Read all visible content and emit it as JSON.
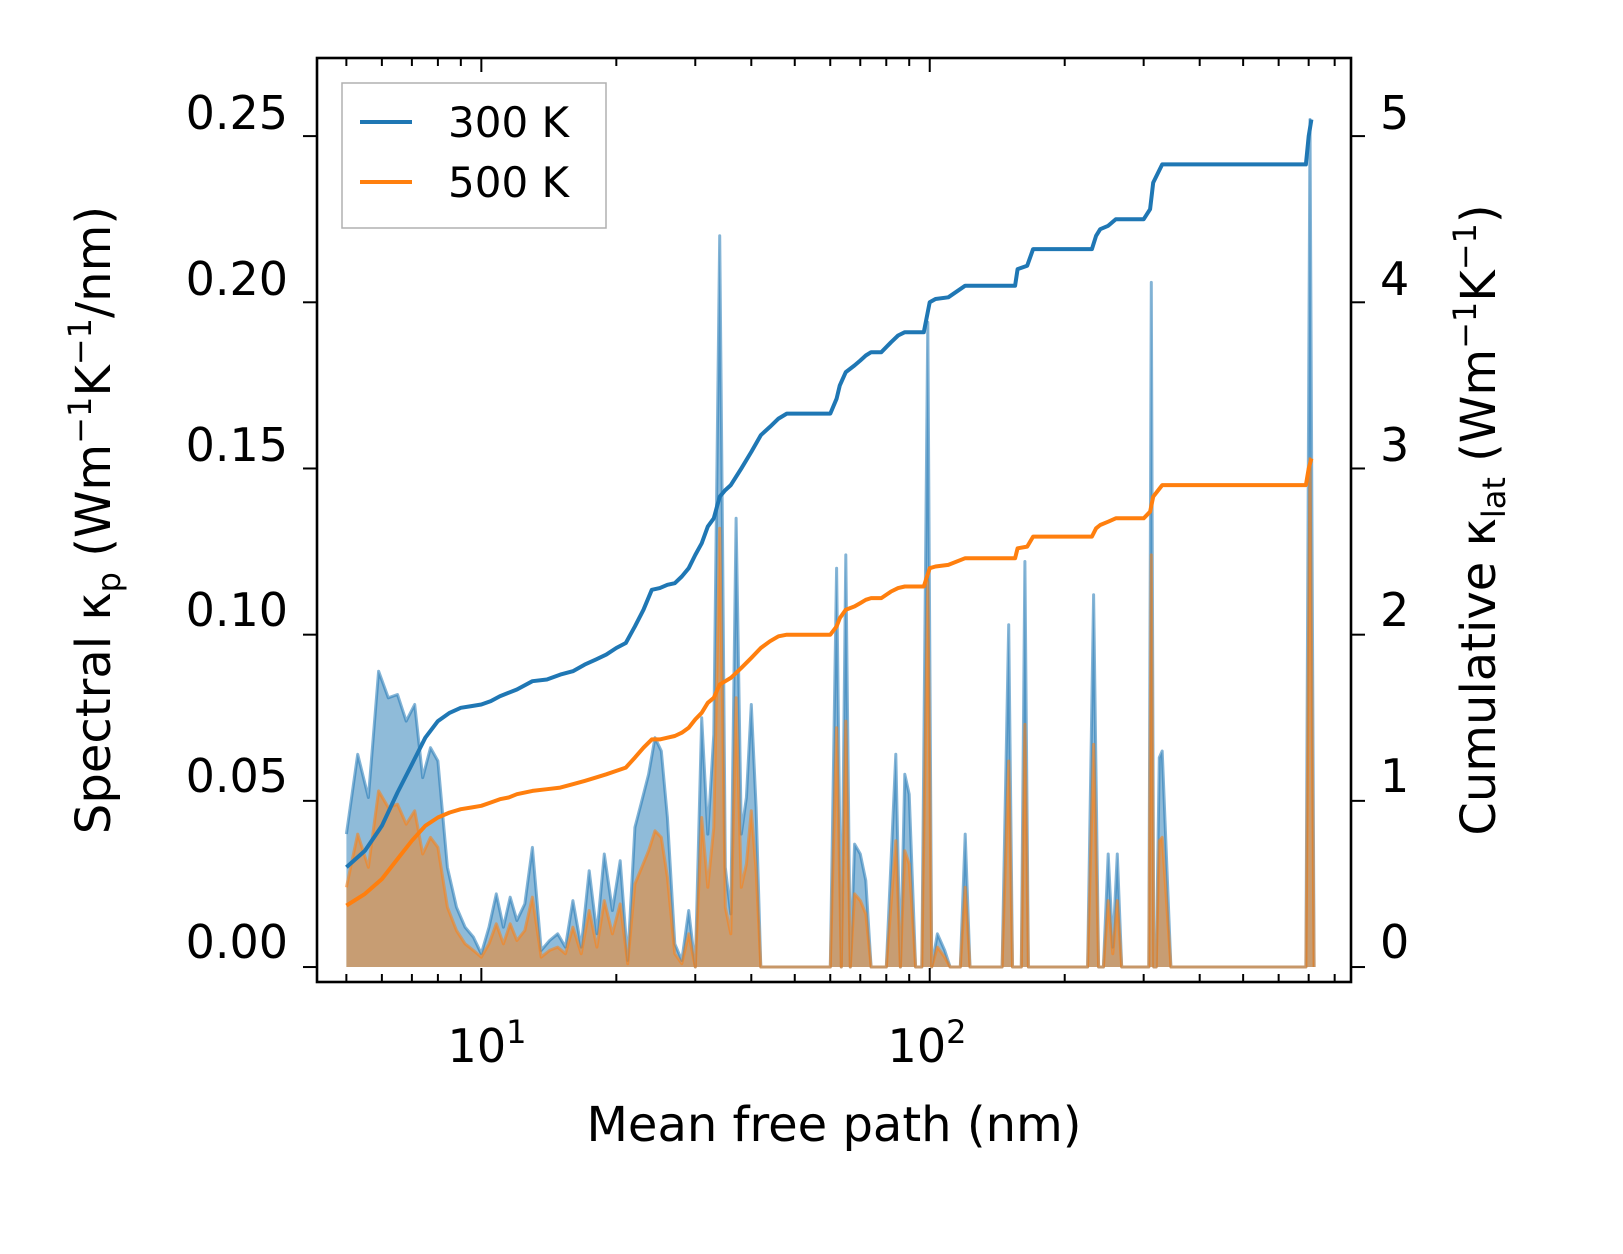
{
  "chart_data": {
    "type": "area",
    "title": "",
    "xlabel": "Mean free path (nm)",
    "xscale": "log",
    "xlim": [
      4.3,
      870
    ],
    "x_major_ticks": [
      10,
      100
    ],
    "x_major_labels": [
      {
        "base": "10",
        "exp": "1"
      },
      {
        "base": "10",
        "exp": "2"
      }
    ],
    "ylabel_left": {
      "prefix": "Spectral κ",
      "sub": "p",
      "units_a": " (Wm",
      "sup1": "−1",
      "units_b": "K",
      "sup2": "−1",
      "units_c": "/nm)"
    },
    "ylabel_right": {
      "prefix": "Cumulative κ",
      "sub": "lat",
      "units_a": " (Wm",
      "sup1": "−1",
      "units_b": "K",
      "sup2": "−1",
      "units_c": ")"
    },
    "ylim_left": [
      -0.0045,
      0.2735
    ],
    "ylim_right": [
      -0.09,
      5.47
    ],
    "yticks_left": [
      0,
      0.05,
      0.1,
      0.15,
      0.2,
      0.25
    ],
    "yticks_left_labels": [
      "0.00",
      "0.05",
      "0.10",
      "0.15",
      "0.20",
      "0.25"
    ],
    "yticks_right": [
      0,
      1,
      2,
      3,
      4,
      5
    ],
    "yticks_right_labels": [
      "0",
      "1",
      "2",
      "3",
      "4",
      "5"
    ],
    "legend": {
      "position": "top-left",
      "entries": [
        {
          "label": "300 K",
          "color": "#1f77b4"
        },
        {
          "label": "500 K",
          "color": "#ff7f0e"
        }
      ]
    },
    "spectral_x": [
      5.0,
      5.3,
      5.6,
      5.9,
      6.2,
      6.5,
      6.8,
      7.1,
      7.4,
      7.7,
      8.0,
      8.4,
      8.8,
      9.2,
      9.6,
      10.0,
      10.4,
      10.8,
      11.2,
      11.6,
      12.0,
      12.5,
      13.0,
      13.6,
      14.2,
      14.8,
      15.4,
      16.0,
      16.7,
      17.4,
      18.1,
      18.8,
      19.6,
      20.4,
      21.2,
      22.0,
      22.8,
      23.6,
      24.4,
      25.2,
      26.0,
      27.0,
      28.0,
      29.0,
      30.0,
      31.0,
      32.0,
      33.0,
      34.0,
      34.5,
      35.0,
      36.0,
      37.0,
      38.0,
      39.0,
      40.0,
      41.0,
      42.0,
      43.5,
      45.0,
      46.5,
      48.0,
      55.0,
      60.0,
      62.0,
      63.5,
      65.0,
      66.5,
      68.0,
      70.0,
      72.0,
      74.0,
      76.0,
      80.0,
      84.0,
      86.0,
      88.0,
      90.0,
      93.0,
      96.0,
      99.0,
      101.0,
      104.0,
      108.0,
      111.0,
      114.0,
      117.0,
      120.0,
      123.0,
      126.0,
      130.0,
      145.0,
      150.0,
      153.0,
      156.0,
      160.0,
      163.0,
      166.0,
      169.0,
      172.0,
      176.0,
      200.0,
      225.0,
      232.0,
      238.0,
      244.0,
      250.0,
      256.0,
      262.0,
      268.0,
      274.0,
      280.0,
      285.0,
      300.0,
      308.0,
      312.0,
      316.0,
      320.0,
      325.0,
      330.0,
      345.0,
      380.0,
      500.0,
      690.0,
      705.0,
      720.0
    ],
    "series": [
      {
        "name": "300 K",
        "color": "#1f77b4",
        "spectral": [
          0.04,
          0.064,
          0.051,
          0.089,
          0.081,
          0.082,
          0.074,
          0.079,
          0.057,
          0.066,
          0.062,
          0.03,
          0.018,
          0.012,
          0.009,
          0.004,
          0.012,
          0.022,
          0.012,
          0.021,
          0.014,
          0.019,
          0.036,
          0.005,
          0.008,
          0.01,
          0.006,
          0.02,
          0.006,
          0.029,
          0.01,
          0.034,
          0.017,
          0.032,
          0.002,
          0.042,
          0.05,
          0.058,
          0.069,
          0.065,
          0.045,
          0.007,
          0.002,
          0.017,
          0.0,
          0.075,
          0.04,
          0.07,
          0.22,
          0.13,
          0.03,
          0.016,
          0.135,
          0.04,
          0.051,
          0.079,
          0.048,
          0.0,
          0.0,
          0.0,
          0.0,
          0.0,
          0.0,
          0.0,
          0.12,
          0.0,
          0.124,
          0.0,
          0.037,
          0.034,
          0.026,
          0.0,
          0.0,
          0.0,
          0.064,
          0.0,
          0.058,
          0.052,
          0.0,
          0.0,
          0.194,
          0.0,
          0.01,
          0.005,
          0.0,
          0.0,
          0.0,
          0.04,
          0.0,
          0.0,
          0.0,
          0.0,
          0.103,
          0.0,
          0.0,
          0.0,
          0.122,
          0.0,
          0.0,
          0.0,
          0.0,
          0.0,
          0.0,
          0.112,
          0.0,
          0.0,
          0.034,
          0.006,
          0.034,
          0.0,
          0.0,
          0.0,
          0.0,
          0.0,
          0.0,
          0.206,
          0.0,
          0.0,
          0.063,
          0.065,
          0.0,
          0.0,
          0.0,
          0.0,
          0.255,
          0.0
        ],
        "cumulative_x": [
          5.0,
          5.5,
          6.0,
          6.5,
          7.0,
          7.5,
          8.0,
          8.5,
          9.0,
          9.5,
          10.0,
          10.5,
          11.0,
          11.5,
          12.0,
          13.0,
          14.0,
          15.0,
          16.0,
          17.0,
          18.0,
          19.0,
          20.0,
          21.0,
          22.0,
          23.0,
          24.0,
          25.0,
          26.0,
          27.0,
          28.0,
          29.0,
          30.0,
          31.0,
          32.0,
          33.0,
          34.0,
          35.0,
          36.0,
          38.0,
          40.0,
          42.0,
          44.0,
          46.0,
          48.0,
          50.0,
          55.0,
          60.0,
          62.0,
          63.0,
          65.0,
          68.0,
          70.0,
          72.0,
          74.0,
          78.0,
          82.0,
          85.0,
          88.0,
          92.0,
          97.0,
          100.0,
          103.0,
          110.0,
          120.0,
          125.0,
          140.0,
          155.0,
          157.0,
          165.0,
          170.0,
          200.0,
          230.0,
          235.0,
          240.0,
          250.0,
          260.0,
          270.0,
          300.0,
          310.0,
          315.0,
          330.0,
          345.0,
          400.0,
          690.0,
          700.0,
          710.0
        ],
        "cumulative": [
          0.6,
          0.7,
          0.85,
          1.05,
          1.22,
          1.38,
          1.48,
          1.53,
          1.56,
          1.57,
          1.58,
          1.6,
          1.63,
          1.65,
          1.67,
          1.72,
          1.73,
          1.76,
          1.78,
          1.82,
          1.85,
          1.88,
          1.92,
          1.95,
          2.05,
          2.15,
          2.27,
          2.28,
          2.3,
          2.31,
          2.35,
          2.4,
          2.48,
          2.55,
          2.65,
          2.7,
          2.83,
          2.87,
          2.9,
          3.0,
          3.1,
          3.2,
          3.25,
          3.3,
          3.33,
          3.33,
          3.33,
          3.33,
          3.42,
          3.5,
          3.58,
          3.62,
          3.65,
          3.68,
          3.7,
          3.7,
          3.76,
          3.8,
          3.82,
          3.82,
          3.82,
          4.0,
          4.02,
          4.03,
          4.1,
          4.1,
          4.1,
          4.1,
          4.2,
          4.22,
          4.32,
          4.32,
          4.32,
          4.4,
          4.44,
          4.46,
          4.5,
          4.5,
          4.5,
          4.56,
          4.72,
          4.83,
          4.83,
          4.83,
          4.83,
          5.0,
          5.1
        ]
      },
      {
        "name": "500 K",
        "color": "#ff7f0e",
        "spectral": [
          0.024,
          0.04,
          0.03,
          0.053,
          0.048,
          0.049,
          0.043,
          0.047,
          0.034,
          0.039,
          0.036,
          0.018,
          0.011,
          0.007,
          0.005,
          0.003,
          0.007,
          0.013,
          0.007,
          0.013,
          0.008,
          0.011,
          0.021,
          0.003,
          0.005,
          0.006,
          0.004,
          0.012,
          0.004,
          0.017,
          0.006,
          0.02,
          0.01,
          0.019,
          0.001,
          0.025,
          0.03,
          0.035,
          0.041,
          0.039,
          0.027,
          0.004,
          0.001,
          0.01,
          0.0,
          0.045,
          0.024,
          0.042,
          0.132,
          0.078,
          0.018,
          0.01,
          0.081,
          0.024,
          0.031,
          0.047,
          0.029,
          0.0,
          0.0,
          0.0,
          0.0,
          0.0,
          0.0,
          0.0,
          0.072,
          0.0,
          0.074,
          0.0,
          0.022,
          0.02,
          0.016,
          0.0,
          0.0,
          0.0,
          0.038,
          0.0,
          0.035,
          0.031,
          0.0,
          0.0,
          0.116,
          0.0,
          0.006,
          0.003,
          0.0,
          0.0,
          0.0,
          0.024,
          0.0,
          0.0,
          0.0,
          0.0,
          0.062,
          0.0,
          0.0,
          0.0,
          0.073,
          0.0,
          0.0,
          0.0,
          0.0,
          0.0,
          0.0,
          0.067,
          0.0,
          0.0,
          0.02,
          0.004,
          0.02,
          0.0,
          0.0,
          0.0,
          0.0,
          0.0,
          0.0,
          0.124,
          0.0,
          0.0,
          0.038,
          0.039,
          0.0,
          0.0,
          0.0,
          0.0,
          0.153,
          0.0
        ],
        "cumulative_x": [
          5.0,
          5.5,
          6.0,
          6.5,
          7.0,
          7.5,
          8.0,
          8.5,
          9.0,
          9.5,
          10.0,
          10.5,
          11.0,
          11.5,
          12.0,
          13.0,
          14.0,
          15.0,
          16.0,
          17.0,
          18.0,
          19.0,
          20.0,
          21.0,
          22.0,
          23.0,
          24.0,
          25.0,
          26.0,
          27.0,
          28.0,
          29.0,
          30.0,
          31.0,
          32.0,
          33.0,
          34.0,
          35.0,
          36.0,
          38.0,
          40.0,
          42.0,
          44.0,
          46.0,
          48.0,
          50.0,
          55.0,
          60.0,
          62.0,
          63.0,
          65.0,
          68.0,
          70.0,
          72.0,
          74.0,
          78.0,
          82.0,
          85.0,
          88.0,
          92.0,
          97.0,
          100.0,
          103.0,
          110.0,
          120.0,
          125.0,
          140.0,
          155.0,
          157.0,
          165.0,
          170.0,
          200.0,
          230.0,
          235.0,
          240.0,
          250.0,
          260.0,
          270.0,
          300.0,
          310.0,
          315.0,
          330.0,
          345.0,
          400.0,
          690.0,
          700.0,
          710.0
        ],
        "cumulative": [
          0.37,
          0.44,
          0.53,
          0.65,
          0.76,
          0.85,
          0.9,
          0.93,
          0.95,
          0.96,
          0.97,
          0.99,
          1.01,
          1.02,
          1.04,
          1.06,
          1.07,
          1.08,
          1.1,
          1.12,
          1.14,
          1.16,
          1.18,
          1.2,
          1.26,
          1.32,
          1.37,
          1.37,
          1.38,
          1.39,
          1.41,
          1.44,
          1.49,
          1.53,
          1.59,
          1.62,
          1.7,
          1.72,
          1.74,
          1.8,
          1.86,
          1.92,
          1.96,
          1.99,
          2.0,
          2.0,
          2.0,
          2.0,
          2.05,
          2.1,
          2.15,
          2.17,
          2.19,
          2.21,
          2.22,
          2.22,
          2.26,
          2.28,
          2.29,
          2.29,
          2.29,
          2.4,
          2.41,
          2.42,
          2.46,
          2.46,
          2.46,
          2.46,
          2.52,
          2.53,
          2.59,
          2.59,
          2.59,
          2.64,
          2.66,
          2.68,
          2.7,
          2.7,
          2.7,
          2.74,
          2.83,
          2.9,
          2.9,
          2.9,
          2.9,
          3.0,
          3.06
        ]
      }
    ]
  }
}
